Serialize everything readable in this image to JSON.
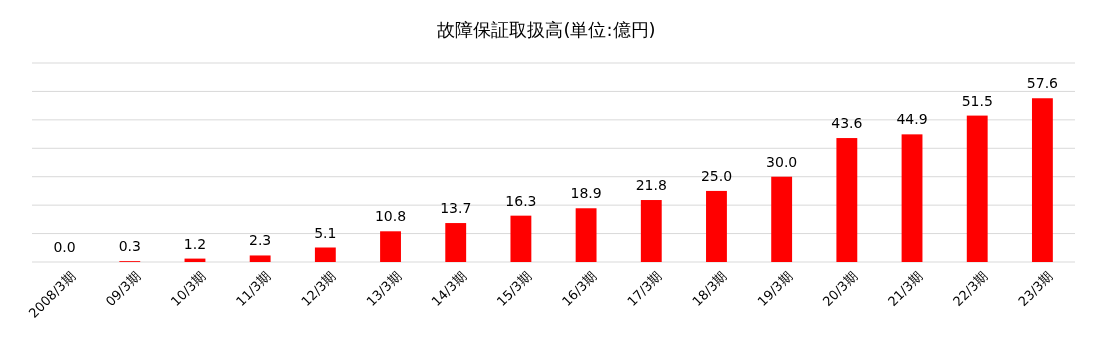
{
  "chart_data": {
    "type": "bar",
    "title": "故障保証取扱高(単位:億円)",
    "categories": [
      "2008/3期",
      "09/3期",
      "10/3期",
      "11/3期",
      "12/3期",
      "13/3期",
      "14/3期",
      "15/3期",
      "16/3期",
      "17/3期",
      "18/3期",
      "19/3期",
      "20/3期",
      "21/3期",
      "22/3期",
      "23/3期"
    ],
    "values": [
      0.0,
      0.3,
      1.2,
      2.3,
      5.1,
      10.8,
      13.7,
      16.3,
      18.9,
      21.8,
      25.0,
      30.0,
      43.6,
      44.9,
      51.5,
      57.6
    ],
    "value_labels": [
      "0.0",
      "0.3",
      "1.2",
      "2.3",
      "5.1",
      "10.8",
      "13.7",
      "16.3",
      "18.9",
      "21.8",
      "25.0",
      "30.0",
      "43.6",
      "44.9",
      "51.5",
      "57.6"
    ],
    "color": "#ff0000",
    "ylim": [
      0,
      70
    ],
    "yticks": [
      {
        "value": 0,
        "label": null
      },
      {
        "value": 10,
        "label": null
      },
      {
        "value": 20,
        "label": null
      },
      {
        "value": 30,
        "label": null
      },
      {
        "value": 40,
        "label": null
      },
      {
        "value": 50,
        "label": null
      },
      {
        "value": 60,
        "label": null
      },
      {
        "value": 70,
        "label": null
      }
    ],
    "grid": "y",
    "tick_labels": "x"
  }
}
